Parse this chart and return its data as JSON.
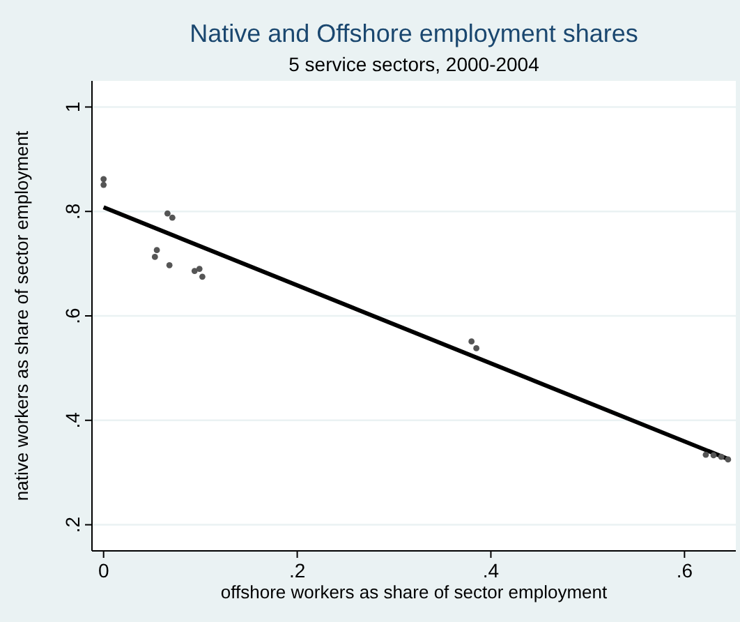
{
  "chart_data": {
    "type": "scatter",
    "title": "Native and Offshore employment shares",
    "subtitle": "5 service sectors, 2000-2004",
    "xlabel": "offshore workers as share of sector employment",
    "ylabel": "native workers as share of sector employment",
    "xlim": [
      -0.012,
      0.653
    ],
    "ylim": [
      0.15,
      1.05
    ],
    "xticks": [
      0,
      {
        "value": 0.2,
        "label": ".2"
      },
      {
        "value": 0.4,
        "label": ".4"
      },
      {
        "value": 0.6,
        "label": ".6"
      }
    ],
    "yticks": [
      {
        "value": 0.2,
        "label": ".2"
      },
      {
        "value": 0.4,
        "label": ".4"
      },
      {
        "value": 0.6,
        "label": ".6"
      },
      {
        "value": 0.8,
        "label": ".8"
      },
      1
    ],
    "grid": "y",
    "series": [
      {
        "type": "line",
        "color": "#000000",
        "x": [
          0,
          0.645
        ],
        "values": [
          0.808,
          0.326
        ]
      },
      {
        "marker": "circle",
        "color": "#555555",
        "x": [
          0,
          0,
          0.066,
          0.071,
          0.055,
          0.053,
          0.068,
          0.094,
          0.099,
          0.102,
          0.38,
          0.385,
          0.622,
          0.63,
          0.638,
          0.645
        ],
        "values": [
          0.862,
          0.851,
          0.796,
          0.788,
          0.726,
          0.713,
          0.697,
          0.686,
          0.69,
          0.675,
          0.551,
          0.538,
          0.334,
          0.333,
          0.33,
          0.325
        ]
      }
    ]
  }
}
